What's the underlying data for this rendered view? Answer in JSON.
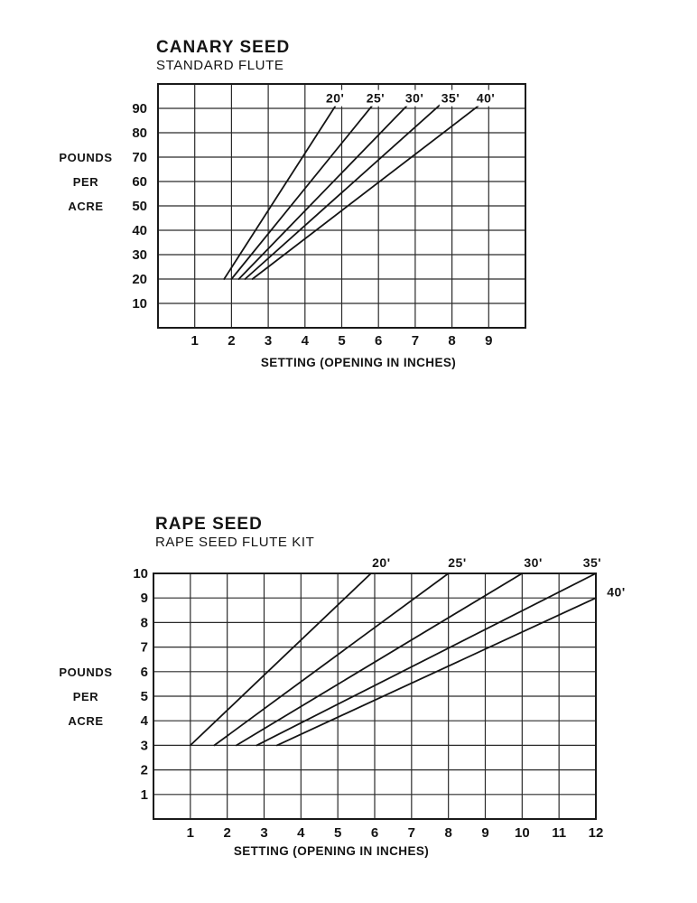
{
  "page": {
    "background": "#ffffff",
    "ink": "#141414",
    "grid_color": "#2b2b2b",
    "border_color": "#1a1a1a"
  },
  "chart_data": [
    {
      "type": "line",
      "title": "CANARY SEED",
      "subtitle": "STANDARD FLUTE",
      "xlabel": "SETTING (OPENING IN INCHES)",
      "ylabel": "POUNDS PER ACRE",
      "ylabel_lines": [
        "POUNDS",
        "PER",
        "ACRE"
      ],
      "xlim": [
        0,
        10
      ],
      "ylim": [
        0,
        100
      ],
      "xticks": [
        1,
        2,
        3,
        4,
        5,
        6,
        7,
        8,
        9
      ],
      "yticks": [
        10,
        20,
        30,
        40,
        50,
        60,
        70,
        80,
        90
      ],
      "grid": true,
      "legend_position": "labels-at-line-tips",
      "series": [
        {
          "name": "20'",
          "points": [
            [
              1.8,
              20
            ],
            [
              4.85,
              91.5
            ]
          ],
          "label_at": [
            4.82,
            94.2
          ]
        },
        {
          "name": "25'",
          "points": [
            [
              2.0,
              20
            ],
            [
              5.85,
              91.5
            ]
          ],
          "label_at": [
            5.92,
            94.2
          ]
        },
        {
          "name": "30'",
          "points": [
            [
              2.2,
              20
            ],
            [
              6.8,
              91.5
            ]
          ],
          "label_at": [
            6.98,
            94.2
          ]
        },
        {
          "name": "35'",
          "points": [
            [
              2.37,
              20
            ],
            [
              7.68,
              91.5
            ]
          ],
          "label_at": [
            7.96,
            94.2
          ]
        },
        {
          "name": "40'",
          "points": [
            [
              2.57,
              20
            ],
            [
              8.76,
              91.5
            ]
          ],
          "label_at": [
            8.92,
            94.2
          ]
        }
      ]
    },
    {
      "type": "line",
      "title": "RAPE SEED",
      "subtitle": "RAPE SEED FLUTE KIT",
      "xlabel": "SETTING (OPENING IN INCHES)",
      "ylabel": "POUNDS PER ACRE",
      "ylabel_lines": [
        "POUNDS",
        "PER",
        "ACRE"
      ],
      "xlim": [
        0,
        12
      ],
      "ylim": [
        0,
        10
      ],
      "xticks": [
        1,
        2,
        3,
        4,
        5,
        6,
        7,
        8,
        9,
        10,
        11,
        12
      ],
      "yticks": [
        1,
        2,
        3,
        4,
        5,
        6,
        7,
        8,
        9,
        10
      ],
      "grid": true,
      "legend_position": "labels-above-line-tips",
      "series": [
        {
          "name": "20'",
          "points": [
            [
              1.0,
              3
            ],
            [
              5.9,
              10
            ]
          ],
          "label_at": [
            6.18,
            10.45
          ]
        },
        {
          "name": "25'",
          "points": [
            [
              1.65,
              3
            ],
            [
              8.0,
              10
            ]
          ],
          "label_at": [
            8.24,
            10.45
          ]
        },
        {
          "name": "30'",
          "points": [
            [
              2.25,
              3
            ],
            [
              10.0,
              10
            ]
          ],
          "label_at": [
            10.3,
            10.45
          ]
        },
        {
          "name": "35'",
          "points": [
            [
              2.8,
              3
            ],
            [
              12.0,
              10
            ]
          ],
          "label_at": [
            11.9,
            10.45
          ]
        },
        {
          "name": "40'",
          "points": [
            [
              3.35,
              3
            ],
            [
              12.0,
              9.0
            ]
          ],
          "label_at": [
            12.55,
            9.25
          ]
        }
      ]
    }
  ]
}
